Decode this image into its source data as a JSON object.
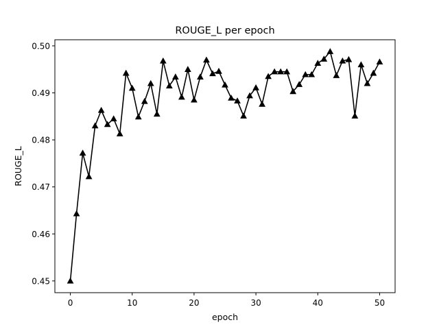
{
  "chart_data": {
    "type": "line",
    "title": "ROUGE_L per epoch",
    "xlabel": "epoch",
    "ylabel": "ROUGE_L",
    "xlim": [
      -2.5,
      52.5
    ],
    "ylim": [
      0.4475,
      0.5013
    ],
    "xticks": [
      0,
      10,
      20,
      30,
      40,
      50
    ],
    "xtick_labels": [
      "0",
      "10",
      "20",
      "30",
      "40",
      "50"
    ],
    "yticks": [
      0.45,
      0.46,
      0.47,
      0.48,
      0.49,
      0.5
    ],
    "ytick_labels": [
      "0.45",
      "0.46",
      "0.47",
      "0.48",
      "0.49",
      "0.50"
    ],
    "grid": false,
    "marker": "triangle-up",
    "line_color": "#000000",
    "series": [
      {
        "x": [
          0,
          1,
          2,
          3,
          4,
          5,
          6,
          7,
          8,
          9,
          10,
          11,
          12,
          13,
          14,
          15,
          16,
          17,
          18,
          19,
          20,
          21,
          22,
          23,
          24,
          25,
          26,
          27,
          28,
          29,
          30,
          31,
          32,
          33,
          34,
          35,
          36,
          37,
          38,
          39,
          40,
          41,
          42,
          43,
          44,
          45,
          46,
          47,
          48,
          49,
          50
        ],
        "values": [
          0.45,
          0.4643,
          0.4772,
          0.4722,
          0.483,
          0.4863,
          0.4833,
          0.4845,
          0.4813,
          0.4942,
          0.491,
          0.4849,
          0.4882,
          0.492,
          0.4855,
          0.4968,
          0.4915,
          0.4934,
          0.4891,
          0.495,
          0.4885,
          0.4934,
          0.497,
          0.4941,
          0.4946,
          0.4917,
          0.4889,
          0.4883,
          0.4851,
          0.4894,
          0.4911,
          0.4876,
          0.4935,
          0.4945,
          0.4945,
          0.4945,
          0.4903,
          0.4918,
          0.4939,
          0.4939,
          0.4963,
          0.4972,
          0.4988,
          0.4937,
          0.4968,
          0.4971,
          0.4851,
          0.496,
          0.492,
          0.4942,
          0.4966
        ]
      }
    ]
  }
}
